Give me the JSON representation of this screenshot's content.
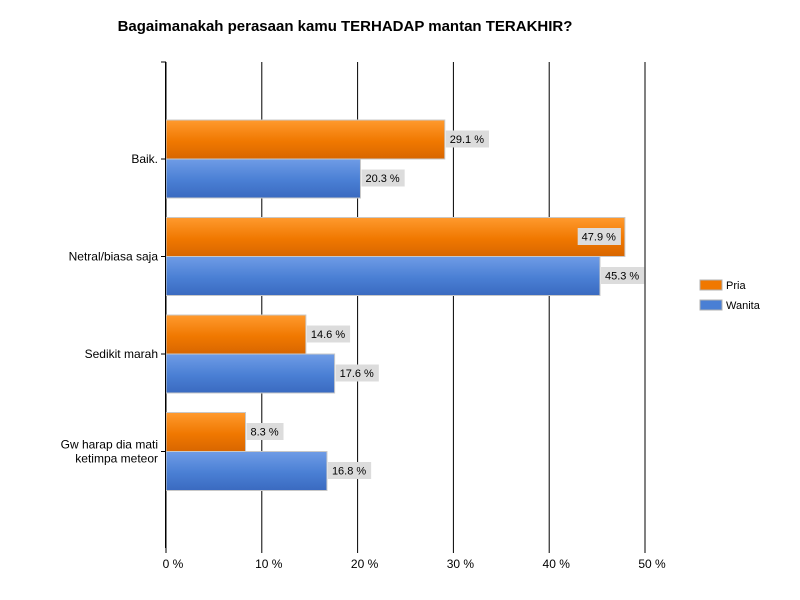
{
  "chart_data": {
    "type": "bar",
    "orientation": "horizontal",
    "title": "Bagaimanakah perasaan kamu TERHADAP mantan TERAKHIR?",
    "categories": [
      "Baik.",
      "Netral/biasa saja",
      "Sedikit marah",
      "Gw harap dia mati ketimpa meteor"
    ],
    "series": [
      {
        "name": "Pria",
        "values": [
          29.1,
          47.9,
          14.6,
          8.3
        ],
        "color": "#f07800"
      },
      {
        "name": "Wanita",
        "values": [
          20.3,
          45.3,
          17.6,
          16.8
        ],
        "color": "#4a7fd4"
      }
    ],
    "data_labels": [
      [
        "29.1 %",
        "47.9 %",
        "14.6 %",
        "8.3 %"
      ],
      [
        "20.3 %",
        "45.3 %",
        "17.6 %",
        "16.8 %"
      ]
    ],
    "xlim": [
      0,
      50
    ],
    "xticks": [
      "0 %",
      "10 %",
      "20 %",
      "30 %",
      "40 %",
      "50 %"
    ],
    "xtick_values": [
      0,
      10,
      20,
      30,
      40,
      50
    ],
    "grid": true,
    "legend_position": "right"
  }
}
